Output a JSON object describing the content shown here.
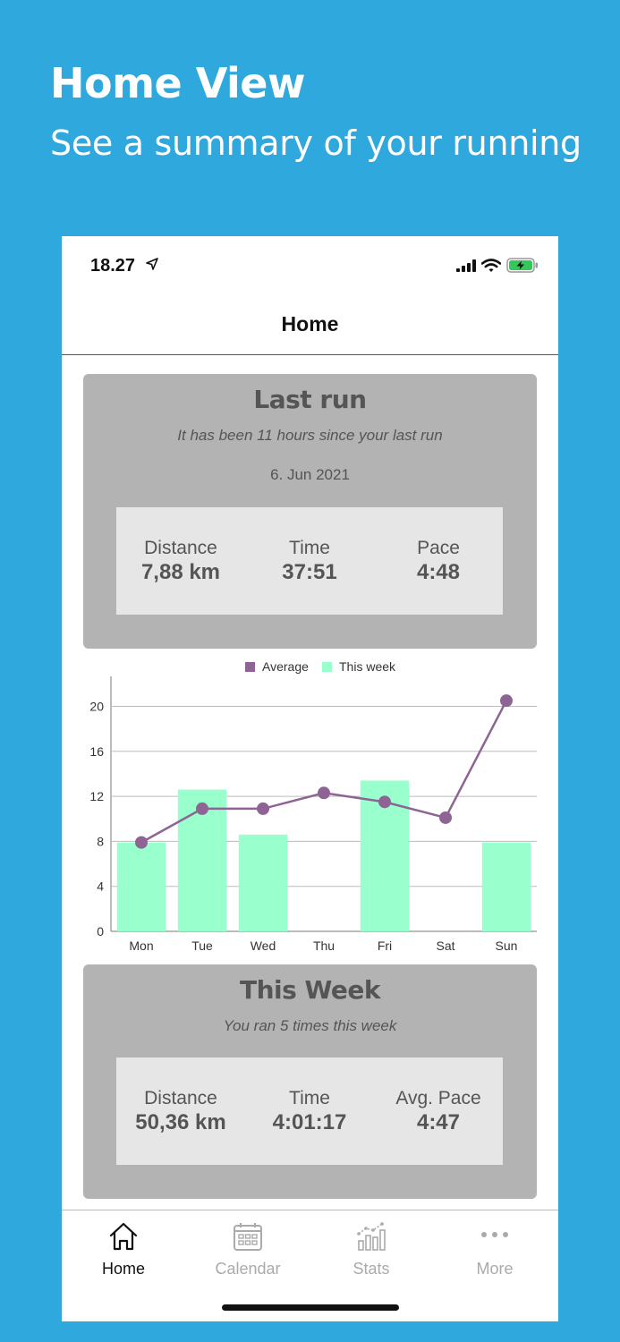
{
  "promo": {
    "title": "Home View",
    "subtitle": "See a summary of your running"
  },
  "status_bar": {
    "time": "18.27"
  },
  "nav": {
    "title": "Home"
  },
  "last_run": {
    "title": "Last run",
    "subtitle": "It has been 11 hours since your last run",
    "date": "6. Jun 2021",
    "stats": [
      {
        "label": "Distance",
        "value": "7,88 km"
      },
      {
        "label": "Time",
        "value": "37:51"
      },
      {
        "label": "Pace",
        "value": "4:48"
      }
    ]
  },
  "chart_data": {
    "type": "bar",
    "categories": [
      "Mon",
      "Tue",
      "Wed",
      "Thu",
      "Fri",
      "Sat",
      "Sun"
    ],
    "series": [
      {
        "name": "This week",
        "type": "bar",
        "color": "#99ffcc",
        "values": [
          7.9,
          12.6,
          8.6,
          0,
          13.4,
          0,
          7.9
        ]
      },
      {
        "name": "Average",
        "type": "line",
        "color": "#8e6494",
        "values": [
          7.9,
          10.9,
          10.9,
          12.3,
          11.5,
          10.1,
          20.5
        ]
      }
    ],
    "yticks": [
      "0",
      "4",
      "8",
      "12",
      "16",
      "20"
    ],
    "ylim": [
      0,
      22.5
    ],
    "legend": "top-center"
  },
  "this_week": {
    "title": "This Week",
    "subtitle": "You ran 5 times this week",
    "stats": [
      {
        "label": "Distance",
        "value": "50,36 km"
      },
      {
        "label": "Time",
        "value": "4:01:17"
      },
      {
        "label": "Avg. Pace",
        "value": "4:47"
      }
    ]
  },
  "tabs": [
    {
      "label": "Home",
      "icon": "home-icon",
      "active": true
    },
    {
      "label": "Calendar",
      "icon": "calendar-icon",
      "active": false
    },
    {
      "label": "Stats",
      "icon": "stats-icon",
      "active": false
    },
    {
      "label": "More",
      "icon": "more-icon",
      "active": false
    }
  ]
}
